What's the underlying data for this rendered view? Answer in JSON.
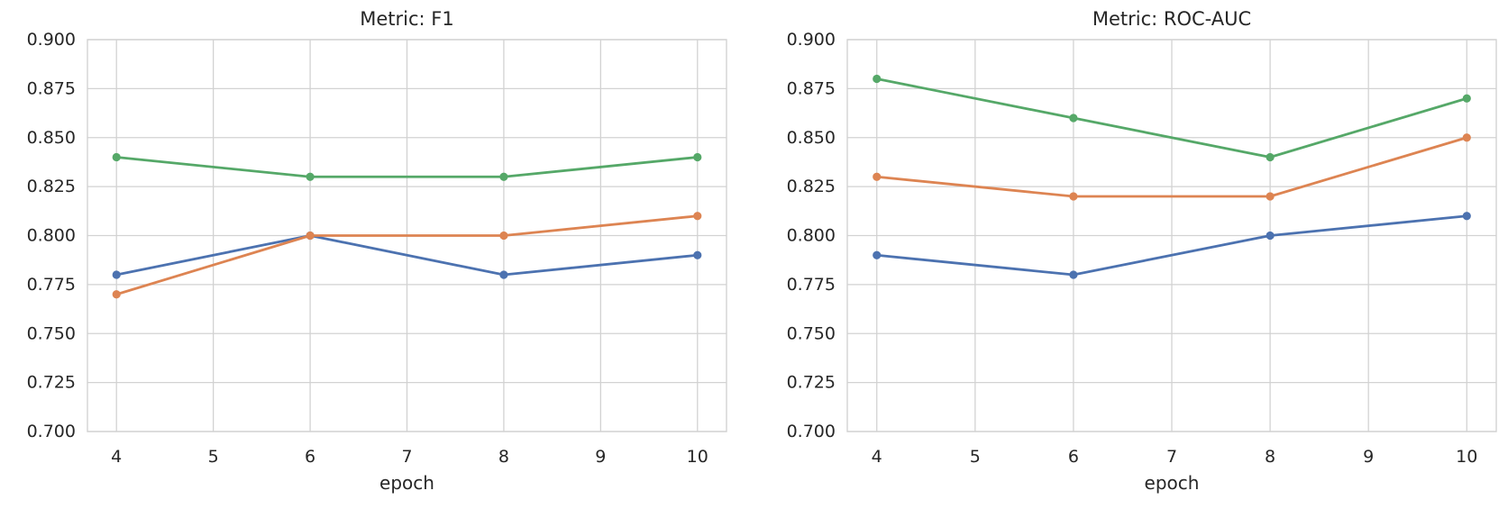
{
  "figure": {
    "background": "#ffffff",
    "grid_color": "#d2d2d2",
    "text_color": "#262626"
  },
  "chart_data": [
    {
      "type": "line",
      "title": "Metric: F1",
      "xlabel": "epoch",
      "ylabel": "",
      "x": [
        4,
        6,
        8,
        10
      ],
      "xticks": [
        4,
        5,
        6,
        7,
        8,
        9,
        10
      ],
      "yticks": [
        "0.900",
        "0.875",
        "0.850",
        "0.825",
        "0.800",
        "0.775",
        "0.750",
        "0.725",
        "0.700"
      ],
      "xlim": [
        3.7,
        10.3
      ],
      "ylim": [
        0.7,
        0.9
      ],
      "grid": true,
      "legend": false,
      "series": [
        {
          "name": "series-blue",
          "color": "#4C72B0",
          "values": [
            0.78,
            0.8,
            0.78,
            0.79
          ]
        },
        {
          "name": "series-orange",
          "color": "#DD8452",
          "values": [
            0.77,
            0.8,
            0.8,
            0.81
          ]
        },
        {
          "name": "series-green",
          "color": "#55A868",
          "values": [
            0.84,
            0.83,
            0.83,
            0.84
          ]
        }
      ]
    },
    {
      "type": "line",
      "title": "Metric: ROC-AUC",
      "xlabel": "epoch",
      "ylabel": "",
      "x": [
        4,
        6,
        8,
        10
      ],
      "xticks": [
        4,
        5,
        6,
        7,
        8,
        9,
        10
      ],
      "yticks": [
        "0.900",
        "0.875",
        "0.850",
        "0.825",
        "0.800",
        "0.775",
        "0.750",
        "0.725",
        "0.700"
      ],
      "xlim": [
        3.7,
        10.3
      ],
      "ylim": [
        0.7,
        0.9
      ],
      "grid": true,
      "legend": false,
      "series": [
        {
          "name": "series-blue",
          "color": "#4C72B0",
          "values": [
            0.79,
            0.78,
            0.8,
            0.81
          ]
        },
        {
          "name": "series-orange",
          "color": "#DD8452",
          "values": [
            0.83,
            0.82,
            0.82,
            0.85
          ]
        },
        {
          "name": "series-green",
          "color": "#55A868",
          "values": [
            0.88,
            0.86,
            0.84,
            0.87
          ]
        }
      ]
    }
  ]
}
